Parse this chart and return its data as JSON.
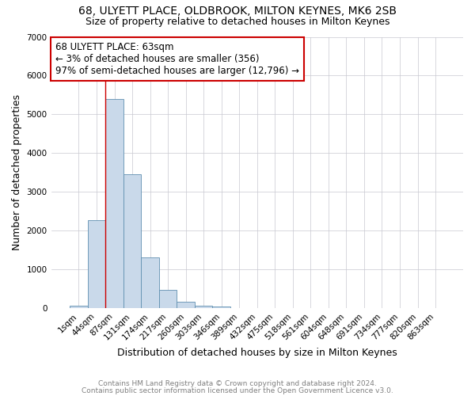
{
  "title": "68, ULYETT PLACE, OLDBROOK, MILTON KEYNES, MK6 2SB",
  "subtitle": "Size of property relative to detached houses in Milton Keynes",
  "xlabel": "Distribution of detached houses by size in Milton Keynes",
  "ylabel": "Number of detached properties",
  "footnote1": "Contains HM Land Registry data © Crown copyright and database right 2024.",
  "footnote2": "Contains public sector information licensed under the Open Government Licence v3.0.",
  "annotation_line1": "68 ULYETT PLACE: 63sqm",
  "annotation_line2": "← 3% of detached houses are smaller (356)",
  "annotation_line3": "97% of semi-detached houses are larger (12,796) →",
  "bar_color": "#c9d9ea",
  "bar_edge_color": "#6090b0",
  "vline_color": "#cc0000",
  "annotation_box_edge": "#cc0000",
  "background_color": "#ffffff",
  "grid_color": "#c8c8d0",
  "categories": [
    "1sqm",
    "44sqm",
    "87sqm",
    "131sqm",
    "174sqm",
    "217sqm",
    "260sqm",
    "303sqm",
    "346sqm",
    "389sqm",
    "432sqm",
    "475sqm",
    "518sqm",
    "561sqm",
    "604sqm",
    "648sqm",
    "691sqm",
    "734sqm",
    "777sqm",
    "820sqm",
    "863sqm"
  ],
  "values": [
    75,
    2280,
    5390,
    3450,
    1310,
    480,
    180,
    80,
    45,
    0,
    0,
    0,
    0,
    0,
    0,
    0,
    0,
    0,
    0,
    0,
    0
  ],
  "ylim": [
    0,
    7000
  ],
  "vline_x": 1.5,
  "title_fontsize": 10,
  "subtitle_fontsize": 9,
  "axis_label_fontsize": 9,
  "tick_fontsize": 7.5,
  "annotation_fontsize": 8.5,
  "footnote_fontsize": 6.5
}
